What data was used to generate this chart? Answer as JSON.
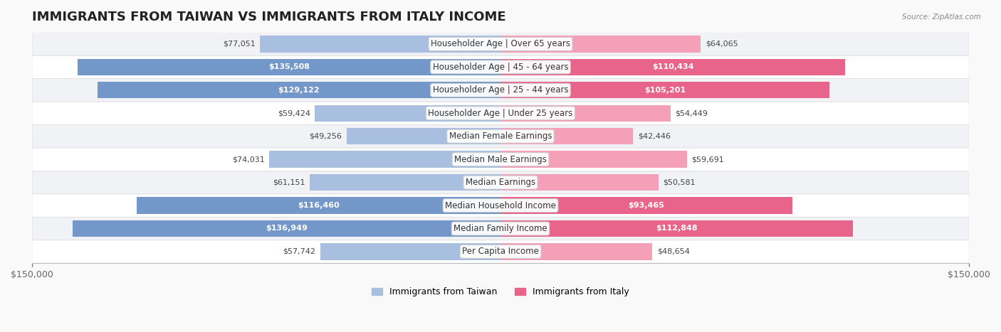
{
  "title": "IMMIGRANTS FROM TAIWAN VS IMMIGRANTS FROM ITALY INCOME",
  "source": "Source: ZipAtlas.com",
  "categories": [
    "Per Capita Income",
    "Median Family Income",
    "Median Household Income",
    "Median Earnings",
    "Median Male Earnings",
    "Median Female Earnings",
    "Householder Age | Under 25 years",
    "Householder Age | 25 - 44 years",
    "Householder Age | 45 - 64 years",
    "Householder Age | Over 65 years"
  ],
  "taiwan_values": [
    57742,
    136949,
    116460,
    61151,
    74031,
    49256,
    59424,
    129122,
    135508,
    77051
  ],
  "italy_values": [
    48654,
    112848,
    93465,
    50581,
    59691,
    42446,
    54449,
    105201,
    110434,
    64065
  ],
  "taiwan_color": "#a8bfe0",
  "taiwan_color_dark": "#7397c8",
  "italy_color": "#f4a0b8",
  "italy_color_dark": "#e8648a",
  "max_value": 150000,
  "label_taiwan_dark_threshold": 90000,
  "label_italy_dark_threshold": 90000,
  "bg_color": "#f5f5f5",
  "row_bg_color": "#ffffff",
  "row_alt_bg_color": "#f0f0f0",
  "title_fontsize": 13,
  "axis_label_fontsize": 9,
  "bar_label_fontsize": 8,
  "category_fontsize": 8.5,
  "legend_fontsize": 9
}
